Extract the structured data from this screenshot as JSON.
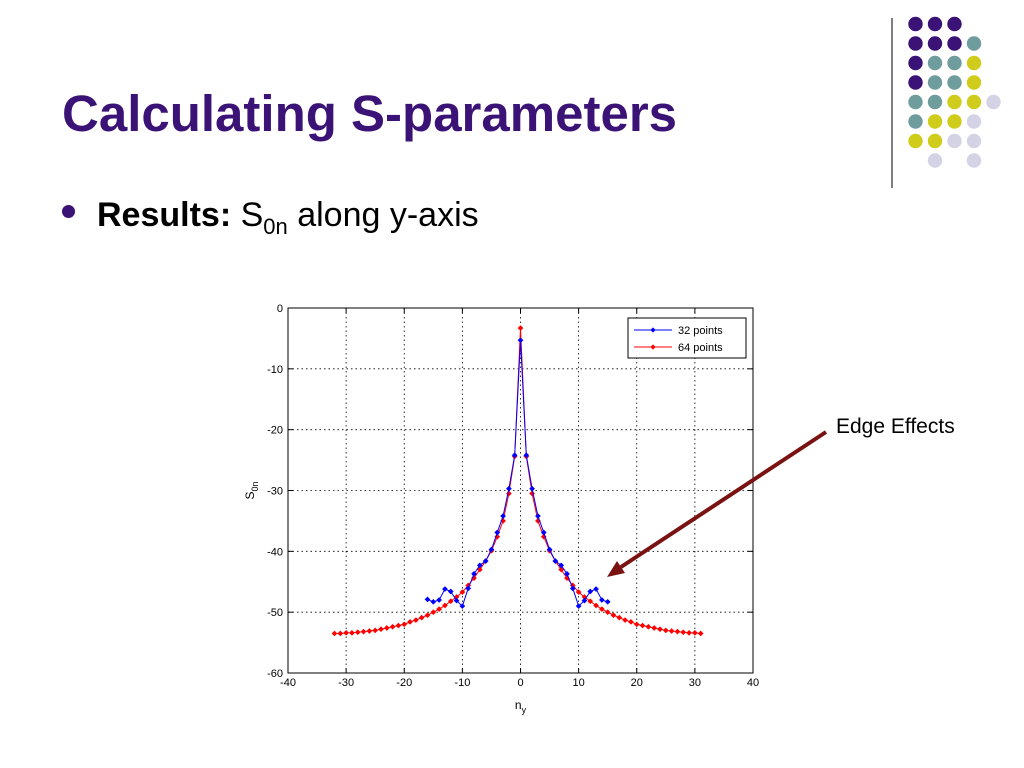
{
  "slide": {
    "title": "Calculating S-parameters",
    "bullet_label": "Results:",
    "bullet_symbol": "S",
    "bullet_symbol_sub": "0n",
    "bullet_rest": "along y-axis",
    "annotation": "Edge Effects"
  },
  "colors": {
    "title": "#3b1275",
    "arrow": "#7a1212",
    "deco_purple": "#3b1275",
    "deco_teal": "#6f9c9c",
    "deco_yellow": "#cfcc1c",
    "deco_lavender": "#d4d3e6"
  },
  "chart_data": {
    "type": "line",
    "xlabel": "n",
    "xlabel_sub": "y",
    "ylabel": "S",
    "ylabel_sub": "0n",
    "xlim": [
      -40,
      40
    ],
    "ylim": [
      -60,
      0
    ],
    "xticks": [
      -40,
      -30,
      -20,
      -10,
      0,
      10,
      20,
      30,
      40
    ],
    "yticks": [
      0,
      -10,
      -20,
      -30,
      -40,
      -50,
      -60
    ],
    "grid": true,
    "legend_position": "top-right",
    "series": [
      {
        "name": "32 points",
        "color": "#0000ff",
        "x": [
          -16,
          -15,
          -14,
          -13,
          -12,
          -11,
          -10,
          -9,
          -8,
          -7,
          -6,
          -5,
          -4,
          -3,
          -2,
          -1,
          0,
          1,
          2,
          3,
          4,
          5,
          6,
          7,
          8,
          9,
          10,
          11,
          12,
          13,
          14,
          15
        ],
        "y": [
          -47.9,
          -48.3,
          -48.0,
          -46.2,
          -46.6,
          -48.1,
          -49.0,
          -46.1,
          -43.7,
          -42.3,
          -41.6,
          -39.7,
          -36.9,
          -34.2,
          -29.7,
          -24.2,
          -5.3,
          -24.2,
          -29.7,
          -34.2,
          -36.9,
          -39.7,
          -41.6,
          -42.3,
          -43.7,
          -46.1,
          -49.0,
          -48.1,
          -46.6,
          -46.2,
          -48.0,
          -48.3
        ]
      },
      {
        "name": "64 points",
        "color": "#ff0000",
        "x": [
          -32,
          -31,
          -30,
          -29,
          -28,
          -27,
          -26,
          -25,
          -24,
          -23,
          -22,
          -21,
          -20,
          -19,
          -18,
          -17,
          -16,
          -15,
          -14,
          -13,
          -12,
          -11,
          -10,
          -9,
          -8,
          -7,
          -6,
          -5,
          -4,
          -3,
          -2,
          -1,
          0,
          1,
          2,
          3,
          4,
          5,
          6,
          7,
          8,
          9,
          10,
          11,
          12,
          13,
          14,
          15,
          16,
          17,
          18,
          19,
          20,
          21,
          22,
          23,
          24,
          25,
          26,
          27,
          28,
          29,
          30,
          31
        ],
        "y": [
          -53.5,
          -53.5,
          -53.4,
          -53.4,
          -53.3,
          -53.2,
          -53.1,
          -53.0,
          -52.8,
          -52.6,
          -52.4,
          -52.2,
          -52.0,
          -51.6,
          -51.3,
          -50.9,
          -50.5,
          -50.0,
          -49.5,
          -48.9,
          -48.2,
          -47.5,
          -46.7,
          -45.6,
          -44.4,
          -43.0,
          -41.6,
          -39.9,
          -37.6,
          -35.0,
          -30.5,
          -24.4,
          -3.3,
          -24.4,
          -30.5,
          -35.0,
          -37.6,
          -39.9,
          -41.6,
          -43.0,
          -44.4,
          -45.6,
          -46.7,
          -47.5,
          -48.2,
          -48.9,
          -49.5,
          -50.0,
          -50.5,
          -50.9,
          -51.3,
          -51.6,
          -52.0,
          -52.2,
          -52.4,
          -52.6,
          -52.8,
          -53.0,
          -53.1,
          -53.2,
          -53.3,
          -53.4,
          -53.4,
          -53.5
        ]
      }
    ]
  }
}
